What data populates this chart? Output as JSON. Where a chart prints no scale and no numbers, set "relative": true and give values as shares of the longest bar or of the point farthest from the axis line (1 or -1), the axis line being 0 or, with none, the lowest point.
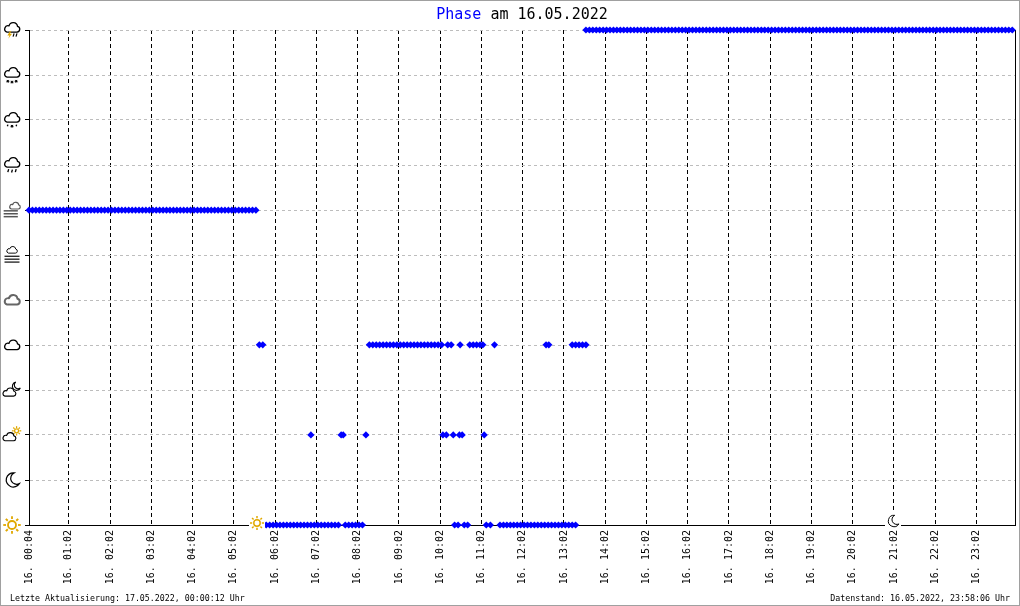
{
  "chart_data": {
    "type": "scatter",
    "title": "am 16.05.2022",
    "legend": "top",
    "marker": "diamond",
    "relative": true,
    "grid": true,
    "tick_labels": "x",
    "xlim": [
      "2022-05-16T00:04",
      "2022-05-16T23:58"
    ],
    "xticks": [
      {
        "value": "2022-05-16T00:04",
        "label": "16. 00:04"
      },
      {
        "value": "2022-05-16T01:02",
        "label": "16. 01:02"
      },
      {
        "value": "2022-05-16T02:02",
        "label": "16. 02:02"
      },
      {
        "value": "2022-05-16T03:02",
        "label": "16. 03:02"
      },
      {
        "value": "2022-05-16T04:02",
        "label": "16. 04:02"
      },
      {
        "value": "2022-05-16T05:02",
        "label": "16. 05:02"
      },
      {
        "value": "2022-05-16T06:02",
        "label": "16. 06:02"
      },
      {
        "value": "2022-05-16T07:02",
        "label": "16. 07:02"
      },
      {
        "value": "2022-05-16T08:02",
        "label": "16. 08:02"
      },
      {
        "value": "2022-05-16T09:02",
        "label": "16. 09:02"
      },
      {
        "value": "2022-05-16T10:02",
        "label": "16. 10:02"
      },
      {
        "value": "2022-05-16T11:02",
        "label": "16. 11:02"
      },
      {
        "value": "2022-05-16T12:02",
        "label": "16. 12:02"
      },
      {
        "value": "2022-05-16T13:02",
        "label": "16. 13:02"
      },
      {
        "value": "2022-05-16T14:02",
        "label": "16. 14:02"
      },
      {
        "value": "2022-05-16T15:02",
        "label": "16. 15:02"
      },
      {
        "value": "2022-05-16T16:02",
        "label": "16. 16:02"
      },
      {
        "value": "2022-05-16T17:02",
        "label": "16. 17:02"
      },
      {
        "value": "2022-05-16T18:02",
        "label": "16. 18:02"
      },
      {
        "value": "2022-05-16T19:02",
        "label": "16. 19:02"
      },
      {
        "value": "2022-05-16T20:02",
        "label": "16. 20:02"
      },
      {
        "value": "2022-05-16T21:02",
        "label": "16. 21:02"
      },
      {
        "value": "2022-05-16T22:02",
        "label": "16. 22:02"
      },
      {
        "value": "2022-05-16T23:02",
        "label": "16. 23:02"
      }
    ],
    "series": [
      {
        "name": "Phase",
        "color": "#0000ff",
        "x": [
          "2022-05-16T00:04",
          "2022-05-16T00:09",
          "2022-05-16T00:14",
          "2022-05-16T00:19",
          "2022-05-16T00:24",
          "2022-05-16T00:29",
          "2022-05-16T00:34",
          "2022-05-16T00:39",
          "2022-05-16T00:44",
          "2022-05-16T00:49",
          "2022-05-16T00:54",
          "2022-05-16T00:59",
          "2022-05-16T01:04",
          "2022-05-16T01:09",
          "2022-05-16T01:14",
          "2022-05-16T01:19",
          "2022-05-16T01:24",
          "2022-05-16T01:29",
          "2022-05-16T01:34",
          "2022-05-16T01:39",
          "2022-05-16T01:44",
          "2022-05-16T01:49",
          "2022-05-16T01:54",
          "2022-05-16T01:59",
          "2022-05-16T02:04",
          "2022-05-16T02:09",
          "2022-05-16T02:14",
          "2022-05-16T02:19",
          "2022-05-16T02:24",
          "2022-05-16T02:29",
          "2022-05-16T02:34",
          "2022-05-16T02:39",
          "2022-05-16T02:44",
          "2022-05-16T02:49",
          "2022-05-16T02:54",
          "2022-05-16T02:59",
          "2022-05-16T03:04",
          "2022-05-16T03:09",
          "2022-05-16T03:14",
          "2022-05-16T03:19",
          "2022-05-16T03:24",
          "2022-05-16T03:29",
          "2022-05-16T03:34",
          "2022-05-16T03:39",
          "2022-05-16T03:44",
          "2022-05-16T03:49",
          "2022-05-16T03:54",
          "2022-05-16T03:59",
          "2022-05-16T04:04",
          "2022-05-16T04:09",
          "2022-05-16T04:14",
          "2022-05-16T04:19",
          "2022-05-16T04:24",
          "2022-05-16T04:29",
          "2022-05-16T04:34",
          "2022-05-16T04:39",
          "2022-05-16T04:44",
          "2022-05-16T04:49",
          "2022-05-16T04:54",
          "2022-05-16T04:59",
          "2022-05-16T05:04",
          "2022-05-16T05:09",
          "2022-05-16T05:14",
          "2022-05-16T05:19",
          "2022-05-16T05:24",
          "2022-05-16T05:29",
          "2022-05-16T05:34",
          "2022-05-16T05:39",
          "2022-05-16T05:44",
          "2022-05-16T05:49",
          "2022-05-16T05:54",
          "2022-05-16T05:59",
          "2022-05-16T06:04",
          "2022-05-16T06:09",
          "2022-05-16T06:14",
          "2022-05-16T06:19",
          "2022-05-16T06:24",
          "2022-05-16T06:29",
          "2022-05-16T06:34",
          "2022-05-16T06:39",
          "2022-05-16T06:44",
          "2022-05-16T06:49",
          "2022-05-16T06:54",
          "2022-05-16T06:54",
          "2022-05-16T06:59",
          "2022-05-16T07:04",
          "2022-05-16T07:09",
          "2022-05-16T07:14",
          "2022-05-16T07:19",
          "2022-05-16T07:24",
          "2022-05-16T07:29",
          "2022-05-16T07:34",
          "2022-05-16T07:38",
          "2022-05-16T07:41",
          "2022-05-16T07:44",
          "2022-05-16T07:49",
          "2022-05-16T07:54",
          "2022-05-16T07:59",
          "2022-05-16T08:04",
          "2022-05-16T08:09",
          "2022-05-16T08:14",
          "2022-05-16T08:19",
          "2022-05-16T08:24",
          "2022-05-16T08:29",
          "2022-05-16T08:34",
          "2022-05-16T08:39",
          "2022-05-16T08:44",
          "2022-05-16T08:49",
          "2022-05-16T08:54",
          "2022-05-16T08:59",
          "2022-05-16T09:04",
          "2022-05-16T09:09",
          "2022-05-16T09:14",
          "2022-05-16T09:19",
          "2022-05-16T09:24",
          "2022-05-16T09:29",
          "2022-05-16T09:34",
          "2022-05-16T09:39",
          "2022-05-16T09:44",
          "2022-05-16T09:49",
          "2022-05-16T09:54",
          "2022-05-16T09:59",
          "2022-05-16T10:04",
          "2022-05-16T10:06",
          "2022-05-16T10:11",
          "2022-05-16T10:13",
          "2022-05-16T10:18",
          "2022-05-16T10:21",
          "2022-05-16T10:23",
          "2022-05-16T10:28",
          "2022-05-16T10:30",
          "2022-05-16T10:31",
          "2022-05-16T10:34",
          "2022-05-16T10:37",
          "2022-05-16T10:42",
          "2022-05-16T10:45",
          "2022-05-16T10:50",
          "2022-05-16T10:55",
          "2022-05-16T11:00",
          "2022-05-16T11:04",
          "2022-05-16T11:06",
          "2022-05-16T11:09",
          "2022-05-16T11:15",
          "2022-05-16T11:21",
          "2022-05-16T11:29",
          "2022-05-16T11:34",
          "2022-05-16T11:39",
          "2022-05-16T11:44",
          "2022-05-16T11:49",
          "2022-05-16T11:54",
          "2022-05-16T11:59",
          "2022-05-16T12:04",
          "2022-05-16T12:09",
          "2022-05-16T12:14",
          "2022-05-16T12:19",
          "2022-05-16T12:24",
          "2022-05-16T12:29",
          "2022-05-16T12:34",
          "2022-05-16T12:36",
          "2022-05-16T12:39",
          "2022-05-16T12:40",
          "2022-05-16T12:44",
          "2022-05-16T12:49",
          "2022-05-16T12:54",
          "2022-05-16T12:59",
          "2022-05-16T13:04",
          "2022-05-16T13:09",
          "2022-05-16T13:14",
          "2022-05-16T13:14",
          "2022-05-16T13:19",
          "2022-05-16T13:19",
          "2022-05-16T13:24",
          "2022-05-16T13:29",
          "2022-05-16T13:34",
          "2022-05-16T13:34",
          "2022-05-16T13:39",
          "2022-05-16T13:44",
          "2022-05-16T13:49",
          "2022-05-16T13:54",
          "2022-05-16T13:59",
          "2022-05-16T14:04",
          "2022-05-16T14:09",
          "2022-05-16T14:14",
          "2022-05-16T14:19",
          "2022-05-16T14:24",
          "2022-05-16T14:29",
          "2022-05-16T14:34",
          "2022-05-16T14:39",
          "2022-05-16T14:44",
          "2022-05-16T14:49",
          "2022-05-16T14:54",
          "2022-05-16T14:59",
          "2022-05-16T15:04",
          "2022-05-16T15:09",
          "2022-05-16T15:14",
          "2022-05-16T15:19",
          "2022-05-16T15:24",
          "2022-05-16T15:29",
          "2022-05-16T15:34",
          "2022-05-16T15:39",
          "2022-05-16T15:44",
          "2022-05-16T15:49",
          "2022-05-16T15:54",
          "2022-05-16T15:59",
          "2022-05-16T16:04",
          "2022-05-16T16:09",
          "2022-05-16T16:14",
          "2022-05-16T16:19",
          "2022-05-16T16:24",
          "2022-05-16T16:29",
          "2022-05-16T16:34",
          "2022-05-16T16:39",
          "2022-05-16T16:44",
          "2022-05-16T16:49",
          "2022-05-16T16:54",
          "2022-05-16T16:59",
          "2022-05-16T17:04",
          "2022-05-16T17:09",
          "2022-05-16T17:14",
          "2022-05-16T17:19",
          "2022-05-16T17:24",
          "2022-05-16T17:29",
          "2022-05-16T17:34",
          "2022-05-16T17:39",
          "2022-05-16T17:44",
          "2022-05-16T17:49",
          "2022-05-16T17:54",
          "2022-05-16T17:59",
          "2022-05-16T18:04",
          "2022-05-16T18:09",
          "2022-05-16T18:14",
          "2022-05-16T18:19",
          "2022-05-16T18:24",
          "2022-05-16T18:29",
          "2022-05-16T18:34",
          "2022-05-16T18:39",
          "2022-05-16T18:44",
          "2022-05-16T18:49",
          "2022-05-16T18:54",
          "2022-05-16T18:59",
          "2022-05-16T19:04",
          "2022-05-16T19:09",
          "2022-05-16T19:14",
          "2022-05-16T19:19",
          "2022-05-16T19:24",
          "2022-05-16T19:29",
          "2022-05-16T19:34",
          "2022-05-16T19:39",
          "2022-05-16T19:44",
          "2022-05-16T19:49",
          "2022-05-16T19:54",
          "2022-05-16T19:59",
          "2022-05-16T20:04",
          "2022-05-16T20:09",
          "2022-05-16T20:14",
          "2022-05-16T20:19",
          "2022-05-16T20:24",
          "2022-05-16T20:29",
          "2022-05-16T20:34",
          "2022-05-16T20:39",
          "2022-05-16T20:44",
          "2022-05-16T20:49",
          "2022-05-16T20:54",
          "2022-05-16T20:59",
          "2022-05-16T21:04",
          "2022-05-16T21:09",
          "2022-05-16T21:14",
          "2022-05-16T21:19",
          "2022-05-16T21:24",
          "2022-05-16T21:29",
          "2022-05-16T21:34",
          "2022-05-16T21:39",
          "2022-05-16T21:44",
          "2022-05-16T21:49",
          "2022-05-16T21:54",
          "2022-05-16T21:59",
          "2022-05-16T22:04",
          "2022-05-16T22:09",
          "2022-05-16T22:14",
          "2022-05-16T22:19",
          "2022-05-16T22:24",
          "2022-05-16T22:29",
          "2022-05-16T22:34",
          "2022-05-16T22:39",
          "2022-05-16T22:44",
          "2022-05-16T22:49",
          "2022-05-16T22:54",
          "2022-05-16T22:59",
          "2022-05-16T23:04",
          "2022-05-16T23:09",
          "2022-05-16T23:14",
          "2022-05-16T23:19",
          "2022-05-16T23:24",
          "2022-05-16T23:29",
          "2022-05-16T23:34",
          "2022-05-16T23:39",
          "2022-05-16T23:44",
          "2022-05-16T23:49",
          "2022-05-16T23:54"
        ],
        "values": [
          0.636,
          0.636,
          0.636,
          0.636,
          0.636,
          0.636,
          0.636,
          0.636,
          0.636,
          0.636,
          0.636,
          0.636,
          0.636,
          0.636,
          0.636,
          0.636,
          0.636,
          0.636,
          0.636,
          0.636,
          0.636,
          0.636,
          0.636,
          0.636,
          0.636,
          0.636,
          0.636,
          0.636,
          0.636,
          0.636,
          0.636,
          0.636,
          0.636,
          0.636,
          0.636,
          0.636,
          0.636,
          0.636,
          0.636,
          0.636,
          0.636,
          0.636,
          0.636,
          0.636,
          0.636,
          0.636,
          0.636,
          0.636,
          0.636,
          0.636,
          0.636,
          0.636,
          0.636,
          0.636,
          0.636,
          0.636,
          0.636,
          0.636,
          0.636,
          0.636,
          0.636,
          0.636,
          0.636,
          0.636,
          0.636,
          0.636,
          0.636,
          0.364,
          0.364,
          0,
          0,
          0,
          0,
          0,
          0,
          0,
          0,
          0,
          0,
          0,
          0,
          0,
          0,
          0.182,
          0,
          0,
          0,
          0,
          0,
          0,
          0,
          0,
          0.182,
          0.182,
          0,
          0,
          0,
          0,
          0,
          0,
          0.182,
          0.364,
          0.364,
          0.364,
          0.364,
          0.364,
          0.364,
          0.364,
          0.364,
          0.364,
          0.364,
          0.364,
          0.364,
          0.364,
          0.364,
          0.364,
          0.364,
          0.364,
          0.364,
          0.364,
          0.364,
          0.364,
          0.364,
          0.182,
          0.182,
          0.364,
          0.364,
          0.182,
          0,
          0,
          0.182,
          0.364,
          0.182,
          0,
          0,
          0.364,
          0.364,
          0.364,
          0.364,
          0.364,
          0.182,
          0,
          0,
          0.364,
          0,
          0,
          0,
          0,
          0,
          0,
          0,
          0,
          0,
          0,
          0,
          0,
          0,
          0,
          0.364,
          0,
          0.364,
          0,
          0,
          0,
          0,
          0,
          0,
          0.364,
          0,
          0.364,
          0,
          0.364,
          0.364,
          1,
          0.364,
          1,
          1,
          1,
          1,
          1,
          1,
          1,
          1,
          1,
          1,
          1,
          1,
          1,
          1,
          1,
          1,
          1,
          1,
          1,
          1,
          1,
          1,
          1,
          1,
          1,
          1,
          1,
          1,
          1,
          1,
          1,
          1,
          1,
          1,
          1,
          1,
          1,
          1,
          1,
          1,
          1,
          1,
          1,
          1,
          1,
          1,
          1,
          1,
          1,
          1,
          1,
          1,
          1,
          1,
          1,
          1,
          1,
          1,
          1,
          1,
          1,
          1,
          1,
          1,
          1,
          1,
          1,
          1,
          1,
          1,
          1,
          1,
          1,
          1,
          1,
          1,
          1,
          1,
          1,
          1,
          1,
          1,
          1,
          1,
          1,
          1,
          1,
          1,
          1,
          1,
          1,
          1,
          1,
          1,
          1,
          1,
          1,
          1,
          1,
          1,
          1,
          1,
          1,
          1,
          1,
          1,
          1,
          1,
          1,
          1,
          1,
          1,
          1,
          1,
          1,
          1,
          1,
          1,
          1,
          1,
          1,
          1,
          1,
          1
        ]
      }
    ],
    "annotations": [
      "Letzte Aktualisierung: 17.05.2022, 00:00:12 Uhr",
      "Datenstand: 16.05.2022, 23:58:06 Uhr"
    ]
  }
}
